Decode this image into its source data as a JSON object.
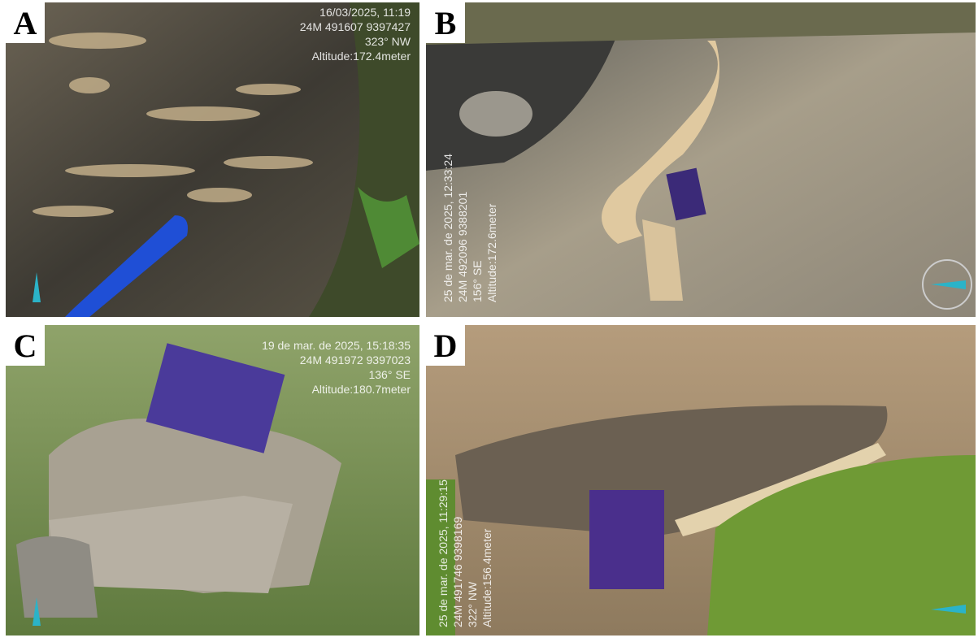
{
  "panels": [
    {
      "label": "A",
      "stamp": [
        "16/03/2025, 11:19",
        "24M 491607 9397427",
        "323° NW",
        "Altitude:172.4meter"
      ]
    },
    {
      "label": "B",
      "stamp": [
        "25 de mar. de 2025, 12:33:24",
        "24M 492096 9388201",
        "156° SE",
        "Altitude:172.6meter"
      ]
    },
    {
      "label": "C",
      "stamp": [
        "19 de mar. de 2025, 15:18:35",
        "24M 491972 9397023",
        "136° SE",
        "Altitude:180.7meter"
      ]
    },
    {
      "label": "D",
      "stamp": [
        "25 de mar. de 2025, 11:29:15",
        "24M 491746 9398169",
        "322° NW",
        "Altitude:156.4meter"
      ]
    }
  ]
}
